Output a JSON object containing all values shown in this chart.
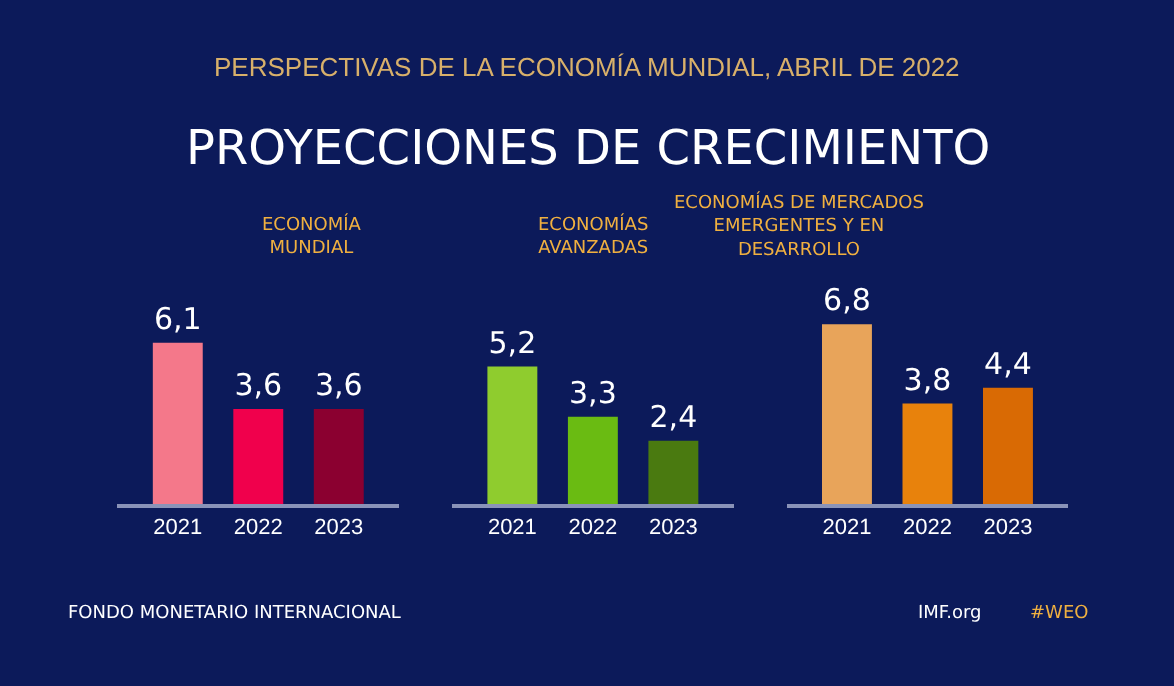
{
  "chart_data": [
    {
      "type": "bar",
      "title": "ECONOMÍA MUNDIAL",
      "categories": [
        "2021",
        "2022",
        "2023"
      ],
      "values": [
        6.1,
        3.6,
        3.6
      ],
      "value_labels": [
        "6,1",
        "3,6",
        "3,6"
      ],
      "colors": [
        "#f4788a",
        "#f0004c",
        "#8b0030"
      ],
      "tick_labels": "x",
      "grid": false,
      "annotations": [
        "PERSPECTIVAS DE LA ECONOMÍA MUNDIAL, ABRIL DE 2022",
        "PROYECCIONES DE CRECIMIENTO",
        "FONDO MONETARIO INTERNACIONAL",
        "IMF.org",
        "#WEO"
      ]
    },
    {
      "type": "bar",
      "title": "ECONOMÍAS AVANZADAS",
      "categories": [
        "2021",
        "2022",
        "2023"
      ],
      "values": [
        5.2,
        3.3,
        2.4
      ],
      "value_labels": [
        "5,2",
        "3,3",
        "2,4"
      ],
      "colors": [
        "#8fcc2e",
        "#6abb12",
        "#4a7a10"
      ],
      "tick_labels": "x",
      "grid": false
    },
    {
      "type": "bar",
      "title": "ECONOMÍAS DE MERCADOS EMERGENTES Y EN DESARROLLO",
      "categories": [
        "2021",
        "2022",
        "2023"
      ],
      "values": [
        6.8,
        3.8,
        4.4
      ],
      "value_labels": [
        "6,8",
        "3,8",
        "4,4"
      ],
      "colors": [
        "#e8a45a",
        "#e8820c",
        "#d96a04"
      ],
      "tick_labels": "x",
      "grid": false
    }
  ]
}
